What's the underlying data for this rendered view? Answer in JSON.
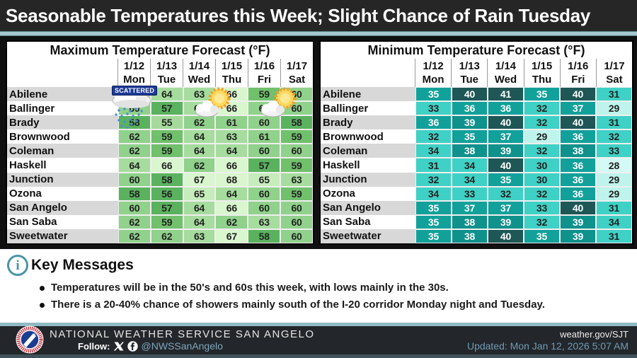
{
  "banner": {
    "title": "Seasonable Temperatures this Week; Slight Chance of Rain Tuesday"
  },
  "overlays": {
    "scattered_label": "SCATTERED"
  },
  "chart_data": [
    {
      "type": "heatmap",
      "title": "Maximum Temperature Forecast (°F)",
      "unit": "°F",
      "columns": [
        {
          "date": "1/12",
          "day": "Mon"
        },
        {
          "date": "1/13",
          "day": "Tue"
        },
        {
          "date": "1/14",
          "day": "Wed"
        },
        {
          "date": "1/15",
          "day": "Thu"
        },
        {
          "date": "1/16",
          "day": "Fri"
        },
        {
          "date": "1/17",
          "day": "Sat"
        }
      ],
      "rows": [
        {
          "city": "Abilene",
          "values": [
            64,
            64,
            63,
            66,
            59,
            60
          ]
        },
        {
          "city": "Ballinger",
          "values": [
            60,
            57,
            64,
            66,
            60,
            60
          ]
        },
        {
          "city": "Brady",
          "values": [
            58,
            55,
            62,
            61,
            60,
            58
          ]
        },
        {
          "city": "Brownwood",
          "values": [
            62,
            59,
            64,
            63,
            61,
            59
          ]
        },
        {
          "city": "Coleman",
          "values": [
            62,
            59,
            64,
            64,
            60,
            60
          ]
        },
        {
          "city": "Haskell",
          "values": [
            64,
            66,
            62,
            66,
            57,
            59
          ]
        },
        {
          "city": "Junction",
          "values": [
            60,
            58,
            67,
            68,
            65,
            63
          ]
        },
        {
          "city": "Ozona",
          "values": [
            58,
            56,
            65,
            64,
            60,
            59
          ]
        },
        {
          "city": "San Angelo",
          "values": [
            60,
            57,
            64,
            66,
            60,
            60
          ]
        },
        {
          "city": "San Saba",
          "values": [
            62,
            59,
            64,
            62,
            63,
            60
          ]
        },
        {
          "city": "Sweetwater",
          "values": [
            62,
            62,
            63,
            67,
            58,
            60
          ]
        }
      ],
      "color_scale": [
        {
          "min": 0,
          "max": 55,
          "bg": "#a5da9c",
          "fg": "#222222"
        },
        {
          "min": 56,
          "max": 58,
          "bg": "#5ab25e",
          "fg": "#222222"
        },
        {
          "min": 59,
          "max": 59,
          "bg": "#70c06c",
          "fg": "#222222"
        },
        {
          "min": 60,
          "max": 62,
          "bg": "#90d18b",
          "fg": "#222222"
        },
        {
          "min": 63,
          "max": 64,
          "bg": "#a6dc9e",
          "fg": "#222222"
        },
        {
          "min": 65,
          "max": 65,
          "bg": "#c6ecbc",
          "fg": "#222222"
        },
        {
          "min": 66,
          "max": 99,
          "bg": "#d9f6ce",
          "fg": "#222222"
        }
      ]
    },
    {
      "type": "heatmap",
      "title": "Minimum Temperature Forecast (°F)",
      "unit": "°F",
      "columns": [
        {
          "date": "1/12",
          "day": "Mon"
        },
        {
          "date": "1/13",
          "day": "Tue"
        },
        {
          "date": "1/14",
          "day": "Wed"
        },
        {
          "date": "1/15",
          "day": "Thu"
        },
        {
          "date": "1/16",
          "day": "Fri"
        },
        {
          "date": "1/17",
          "day": "Sat"
        }
      ],
      "rows": [
        {
          "city": "Abilene",
          "values": [
            35,
            40,
            41,
            35,
            40,
            31
          ]
        },
        {
          "city": "Ballinger",
          "values": [
            33,
            36,
            36,
            32,
            37,
            29
          ]
        },
        {
          "city": "Brady",
          "values": [
            36,
            39,
            40,
            32,
            40,
            31
          ]
        },
        {
          "city": "Brownwood",
          "values": [
            32,
            35,
            37,
            29,
            36,
            32
          ]
        },
        {
          "city": "Coleman",
          "values": [
            34,
            38,
            39,
            32,
            38,
            33
          ]
        },
        {
          "city": "Haskell",
          "values": [
            31,
            34,
            40,
            30,
            36,
            28
          ]
        },
        {
          "city": "Junction",
          "values": [
            32,
            34,
            35,
            30,
            36,
            29
          ]
        },
        {
          "city": "Ozona",
          "values": [
            34,
            33,
            32,
            32,
            36,
            29
          ]
        },
        {
          "city": "San Angelo",
          "values": [
            35,
            37,
            37,
            33,
            40,
            31
          ]
        },
        {
          "city": "San Saba",
          "values": [
            35,
            38,
            39,
            32,
            39,
            34
          ]
        },
        {
          "city": "Sweetwater",
          "values": [
            35,
            38,
            40,
            35,
            39,
            31
          ]
        }
      ],
      "color_scale": [
        {
          "min": 0,
          "max": 28,
          "bg": "#d3faf4",
          "fg": "#222222"
        },
        {
          "min": 29,
          "max": 29,
          "bg": "#bef4ec",
          "fg": "#222222"
        },
        {
          "min": 30,
          "max": 34,
          "bg": "#3fd1c5",
          "fg": "#222222"
        },
        {
          "min": 35,
          "max": 37,
          "bg": "#12a19a",
          "fg": "#ffffff"
        },
        {
          "min": 38,
          "max": 39,
          "bg": "#0f918c",
          "fg": "#ffffff"
        },
        {
          "min": 40,
          "max": 99,
          "bg": "#1e5755",
          "fg": "#ffffff"
        }
      ]
    }
  ],
  "key_messages": {
    "title": "Key Messages",
    "bullets": [
      "Temperatures will be in the 50's and 60s this week, with lows mainly in the 30s.",
      "There is a 20-40% chance of showers mainly south of the I-20 corridor Monday night and Tuesday."
    ]
  },
  "footer": {
    "org": "NATIONAL WEATHER SERVICE SAN ANGELO",
    "follow_label": "Follow:",
    "handle": "@NWSSanAngelo",
    "site": "weather.gov/SJT",
    "updated": "Updated: Mon Jan 12, 2026 5:07 AM"
  },
  "colors": {
    "banner_bg": "#262626",
    "separator_teal": "#a3c8cf",
    "footer_bg": "#23262a",
    "accent_steel_blue": "#6f9cb4",
    "info_icon_teal": "#4b93a9"
  }
}
